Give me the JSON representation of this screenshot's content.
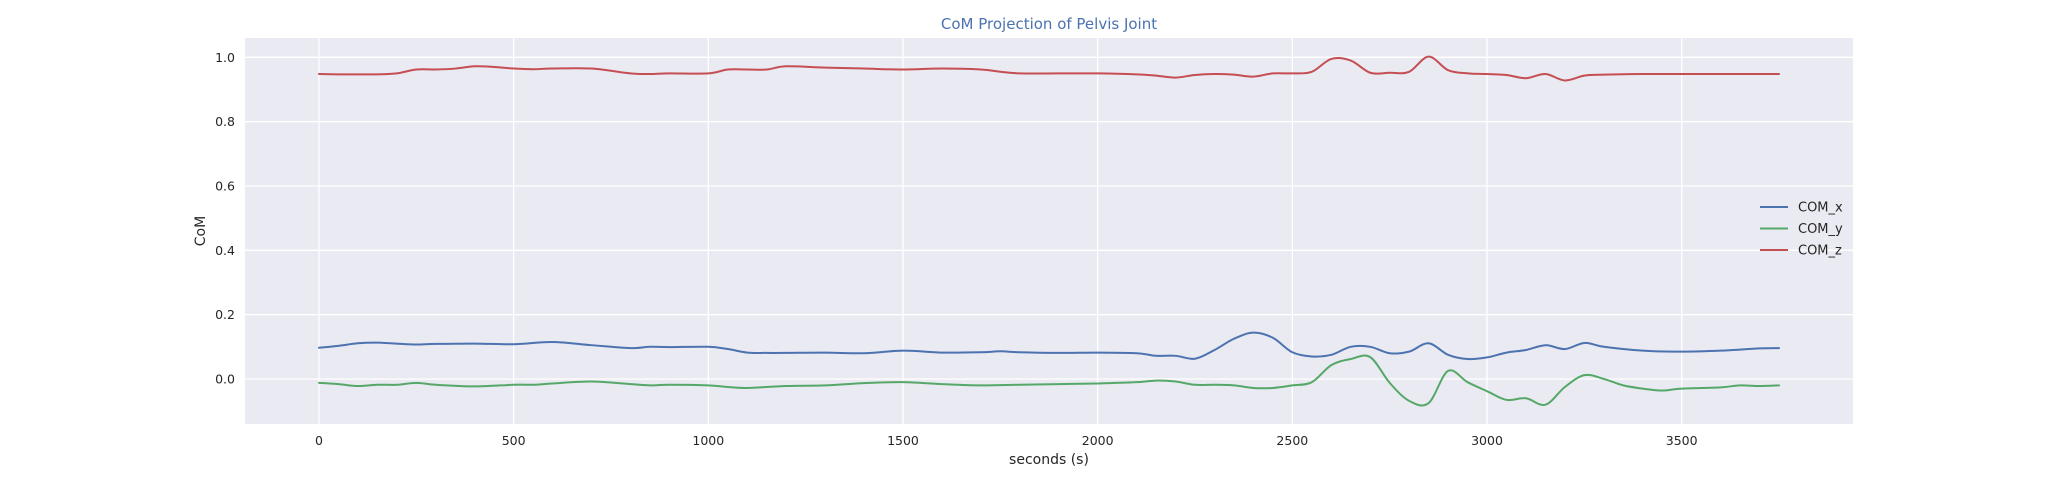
{
  "chart_data": {
    "type": "line",
    "title": "CoM Projection of Pelvis Joint",
    "xlabel": "seconds (s)",
    "ylabel": "CoM",
    "xlim": [
      -190,
      3940
    ],
    "ylim": [
      -0.14,
      1.06
    ],
    "xticks": [
      0,
      500,
      1000,
      1500,
      2000,
      2500,
      3000,
      3500
    ],
    "yticks": [
      0.0,
      0.2,
      0.4,
      0.6,
      0.8,
      1.0
    ],
    "xtick_labels": [
      "0",
      "500",
      "1000",
      "1500",
      "2000",
      "2500",
      "3000",
      "3500"
    ],
    "ytick_labels": [
      "0.0",
      "0.2",
      "0.4",
      "0.6",
      "0.8",
      "1.0"
    ],
    "grid": true,
    "legend_position": "center-right",
    "colors": {
      "title": "#4c72b0",
      "plot_background": "#eaeaf2",
      "grid": "#ffffff",
      "COM_x": "#4c72b0",
      "COM_y": "#55a868",
      "COM_z": "#c44e52"
    },
    "series": [
      {
        "name": "COM_x",
        "x": [
          0,
          50,
          100,
          150,
          200,
          250,
          300,
          400,
          500,
          600,
          700,
          800,
          850,
          900,
          1000,
          1050,
          1100,
          1150,
          1200,
          1300,
          1400,
          1500,
          1600,
          1700,
          1750,
          1800,
          1900,
          2000,
          2100,
          2150,
          2200,
          2250,
          2300,
          2350,
          2400,
          2450,
          2500,
          2550,
          2600,
          2650,
          2700,
          2750,
          2800,
          2850,
          2900,
          2950,
          3000,
          3050,
          3100,
          3150,
          3200,
          3250,
          3300,
          3400,
          3500,
          3600,
          3700,
          3750
        ],
        "values": [
          0.097,
          0.103,
          0.111,
          0.113,
          0.11,
          0.107,
          0.109,
          0.11,
          0.108,
          0.115,
          0.105,
          0.096,
          0.1,
          0.099,
          0.1,
          0.093,
          0.082,
          0.081,
          0.081,
          0.082,
          0.08,
          0.088,
          0.082,
          0.083,
          0.086,
          0.083,
          0.081,
          0.082,
          0.08,
          0.072,
          0.072,
          0.063,
          0.09,
          0.125,
          0.144,
          0.128,
          0.083,
          0.07,
          0.075,
          0.1,
          0.1,
          0.08,
          0.085,
          0.111,
          0.075,
          0.062,
          0.067,
          0.082,
          0.09,
          0.105,
          0.093,
          0.112,
          0.1,
          0.088,
          0.085,
          0.088,
          0.095,
          0.096
        ]
      },
      {
        "name": "COM_y",
        "x": [
          0,
          50,
          100,
          150,
          200,
          250,
          300,
          400,
          500,
          550,
          600,
          700,
          800,
          850,
          900,
          1000,
          1050,
          1100,
          1200,
          1300,
          1400,
          1500,
          1600,
          1700,
          1800,
          1900,
          2000,
          2100,
          2150,
          2200,
          2250,
          2300,
          2350,
          2400,
          2450,
          2500,
          2550,
          2600,
          2650,
          2700,
          2750,
          2800,
          2850,
          2900,
          2950,
          3000,
          3050,
          3100,
          3150,
          3200,
          3250,
          3300,
          3350,
          3400,
          3450,
          3500,
          3600,
          3650,
          3700,
          3750
        ],
        "values": [
          -0.012,
          -0.016,
          -0.022,
          -0.018,
          -0.018,
          -0.012,
          -0.018,
          -0.023,
          -0.018,
          -0.018,
          -0.014,
          -0.008,
          -0.016,
          -0.02,
          -0.018,
          -0.02,
          -0.025,
          -0.028,
          -0.022,
          -0.02,
          -0.013,
          -0.01,
          -0.016,
          -0.02,
          -0.018,
          -0.016,
          -0.014,
          -0.01,
          -0.005,
          -0.008,
          -0.018,
          -0.018,
          -0.02,
          -0.028,
          -0.028,
          -0.02,
          -0.01,
          0.043,
          0.062,
          0.068,
          -0.012,
          -0.068,
          -0.075,
          0.025,
          -0.01,
          -0.038,
          -0.065,
          -0.06,
          -0.08,
          -0.025,
          0.012,
          0.0,
          -0.02,
          -0.03,
          -0.036,
          -0.03,
          -0.026,
          -0.02,
          -0.022,
          -0.02
        ]
      },
      {
        "name": "COM_z",
        "x": [
          0,
          50,
          100,
          150,
          200,
          250,
          300,
          350,
          400,
          450,
          500,
          550,
          600,
          700,
          800,
          850,
          900,
          1000,
          1050,
          1100,
          1150,
          1200,
          1300,
          1400,
          1500,
          1600,
          1700,
          1750,
          1800,
          1900,
          2000,
          2100,
          2150,
          2200,
          2250,
          2300,
          2350,
          2400,
          2450,
          2500,
          2550,
          2600,
          2650,
          2700,
          2750,
          2800,
          2850,
          2900,
          2950,
          3000,
          3050,
          3100,
          3150,
          3200,
          3250,
          3300,
          3400,
          3500,
          3600,
          3700,
          3750
        ],
        "values": [
          0.948,
          0.947,
          0.947,
          0.947,
          0.95,
          0.962,
          0.962,
          0.965,
          0.972,
          0.97,
          0.965,
          0.963,
          0.965,
          0.965,
          0.95,
          0.948,
          0.95,
          0.95,
          0.962,
          0.962,
          0.962,
          0.972,
          0.968,
          0.965,
          0.962,
          0.965,
          0.962,
          0.955,
          0.95,
          0.95,
          0.95,
          0.947,
          0.943,
          0.937,
          0.945,
          0.948,
          0.946,
          0.94,
          0.95,
          0.95,
          0.955,
          0.995,
          0.99,
          0.952,
          0.952,
          0.955,
          1.002,
          0.96,
          0.95,
          0.948,
          0.945,
          0.935,
          0.948,
          0.928,
          0.943,
          0.946,
          0.948,
          0.948,
          0.948,
          0.948,
          0.948
        ]
      }
    ]
  }
}
